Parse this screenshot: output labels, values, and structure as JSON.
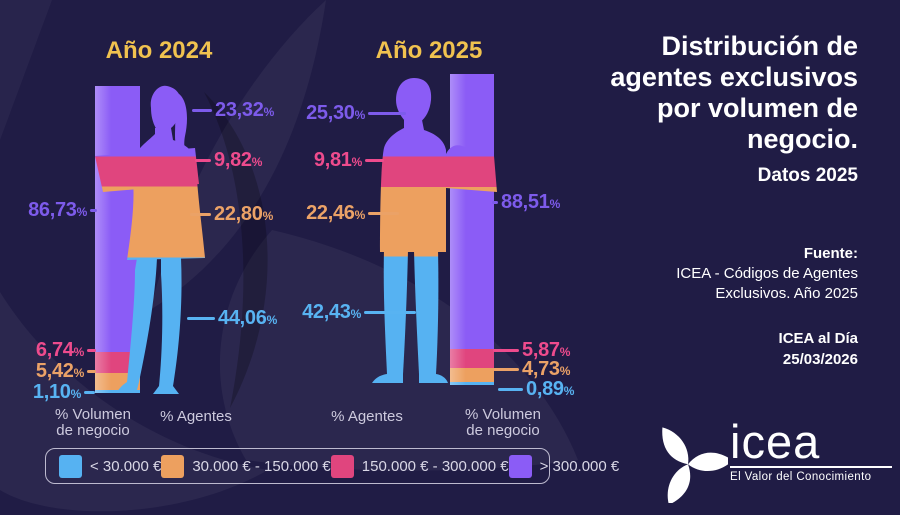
{
  "palette": {
    "blue": "#58b3f2",
    "orange": "#eba267",
    "pink": "#ee4b8d",
    "purple": "#7d5beb",
    "yellow": "#f0c24f",
    "white": "#ffffff",
    "muted": "#cdcade",
    "background": "#201c45"
  },
  "header": {
    "title_lines": [
      "Distribución de",
      "agentes exclusivos",
      "por volumen de",
      "negocio."
    ],
    "subtitle": "Datos 2025"
  },
  "source": {
    "label": "Fuente:",
    "lines": [
      "ICEA - Códigos de Agentes",
      "Exclusivos. Año 2025"
    ],
    "publication": "ICEA al Día",
    "date": "25/03/2026"
  },
  "logo": {
    "wordmark": "icea",
    "tagline": "El Valor del Conocimiento"
  },
  "axis": {
    "volume_lines": [
      "% Volumen",
      "de negocio"
    ],
    "agents_label": "% Agentes"
  },
  "legend": {
    "items": [
      {
        "label": "< 30.000 €",
        "color": "#56b2f2"
      },
      {
        "label": "30.000 € - 150.000 €",
        "color": "#eda05f"
      },
      {
        "label": "150.000 € - 300.000 €",
        "color": "#e0457e"
      },
      {
        "label": "> 300.000 €",
        "color": "#8b5cf6"
      }
    ]
  },
  "figures": {
    "y2024": {
      "title": "Año 2024",
      "agent_callouts": [
        {
          "value": "23,32",
          "suffix": "%"
        },
        {
          "value": "9,82",
          "suffix": "%"
        },
        {
          "value": "22,80",
          "suffix": "%"
        },
        {
          "value": "44,06",
          "suffix": "%"
        }
      ],
      "volume_callouts": [
        {
          "value": "86,73",
          "suffix": "%"
        },
        {
          "value": "6,74",
          "suffix": "%"
        },
        {
          "value": "5,42",
          "suffix": "%"
        },
        {
          "value": "1,10",
          "suffix": "%"
        }
      ]
    },
    "y2025": {
      "title": "Año 2025",
      "agent_callouts": [
        {
          "value": "25,30",
          "suffix": "%"
        },
        {
          "value": "9,81",
          "suffix": "%"
        },
        {
          "value": "22,46",
          "suffix": "%"
        },
        {
          "value": "42,43",
          "suffix": "%"
        }
      ],
      "volume_callouts": [
        {
          "value": "88,51",
          "suffix": "%"
        },
        {
          "value": "5,87",
          "suffix": "%"
        },
        {
          "value": "4,73",
          "suffix": "%"
        },
        {
          "value": "0,89",
          "suffix": "%"
        }
      ]
    }
  },
  "chart_data": [
    {
      "type": "bar",
      "stacked": true,
      "title": "Año 2024",
      "unit": "%",
      "categories": [
        "% Volumen de negocio",
        "% Agentes"
      ],
      "series": [
        {
          "name": "< 30.000 €",
          "color": "#56b2f2",
          "values": [
            1.1,
            44.06
          ]
        },
        {
          "name": "30.000 € - 150.000 €",
          "color": "#eda05f",
          "values": [
            5.42,
            22.8
          ]
        },
        {
          "name": "150.000 € - 300.000 €",
          "color": "#e0457e",
          "values": [
            6.74,
            9.82
          ]
        },
        {
          "name": "> 300.000 €",
          "color": "#8b5cf6",
          "values": [
            86.73,
            23.32
          ]
        }
      ]
    },
    {
      "type": "bar",
      "stacked": true,
      "title": "Año 2025",
      "unit": "%",
      "categories": [
        "% Volumen de negocio",
        "% Agentes"
      ],
      "series": [
        {
          "name": "< 30.000 €",
          "color": "#56b2f2",
          "values": [
            0.89,
            42.43
          ]
        },
        {
          "name": "30.000 € - 150.000 €",
          "color": "#eda05f",
          "values": [
            4.73,
            22.46
          ]
        },
        {
          "name": "150.000 € - 300.000 €",
          "color": "#e0457e",
          "values": [
            5.87,
            9.81
          ]
        },
        {
          "name": "> 300.000 €",
          "color": "#8b5cf6",
          "values": [
            88.51,
            25.3
          ]
        }
      ]
    }
  ]
}
